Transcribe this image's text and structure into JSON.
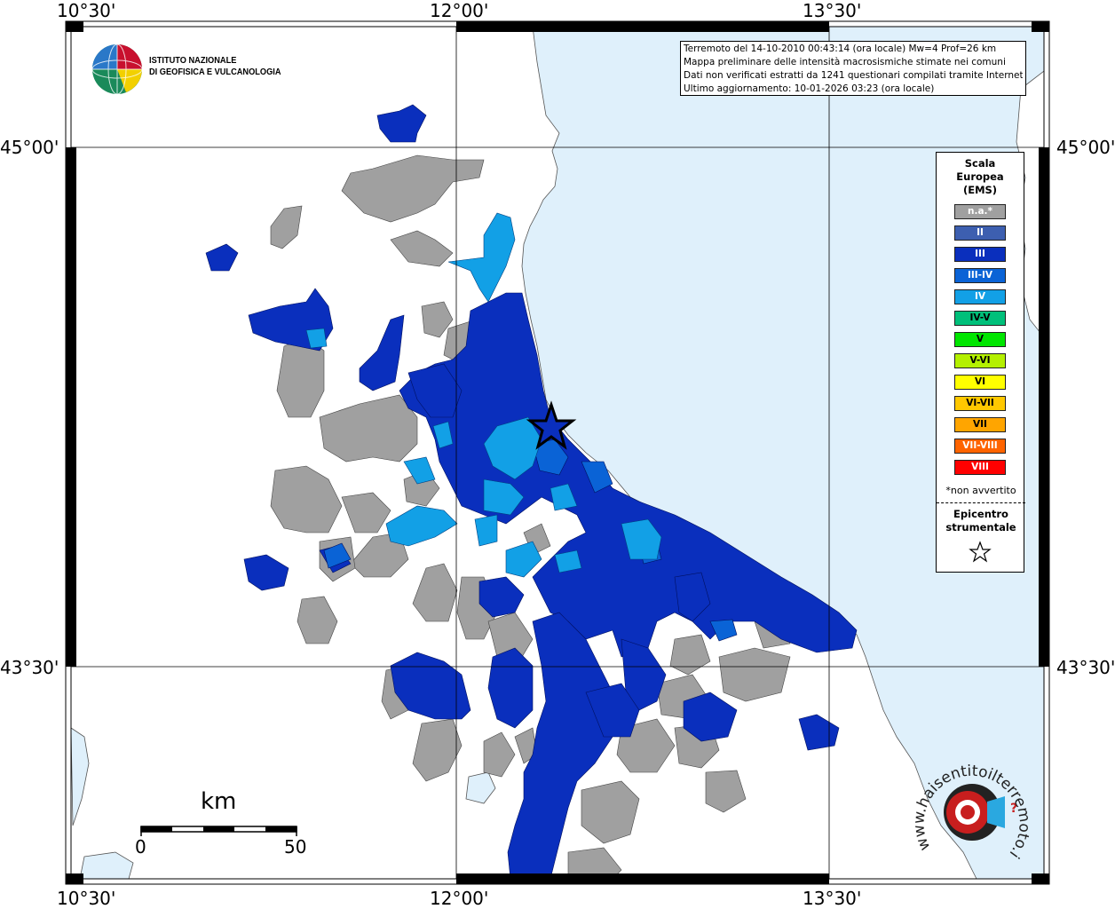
{
  "coords": {
    "top": [
      "10°30'",
      "12°00'",
      "13°30'"
    ],
    "bottom": [
      "10°30'",
      "12°00'",
      "13°30'"
    ],
    "left": [
      "45°00'",
      "43°30'"
    ],
    "right": [
      "45°00'",
      "43°30'"
    ]
  },
  "logo": {
    "line1": "ISTITUTO NAZIONALE",
    "line2": "DI GEOFISICA E VULCANOLOGIA"
  },
  "info": {
    "line1": "Terremoto del 14-10-2010 00:43:14 (ora locale) Mw=4 Prof=26 km",
    "line2": "Mappa preliminare delle intensità macrosismiche stimate nei comuni",
    "line3": "Dati non verificati estratti da 1241 questionari compilati tramite Internet.",
    "line4": "Ultimo aggiornamento: 10-01-2026 03:23 (ora locale)"
  },
  "legend": {
    "title1": "Scala",
    "title2": "Europea",
    "title3": "(EMS)",
    "items": [
      {
        "label": "n.a.*",
        "color": "#a0a0a0",
        "text": "#ffffff"
      },
      {
        "label": "II",
        "color": "#3d5fb0",
        "text": "#ffffff"
      },
      {
        "label": "III",
        "color": "#0a2fbd",
        "text": "#ffffff"
      },
      {
        "label": "III-IV",
        "color": "#0a63d6",
        "text": "#ffffff"
      },
      {
        "label": "IV",
        "color": "#12a0e6",
        "text": "#ffffff"
      },
      {
        "label": "IV-V",
        "color": "#00c07a",
        "text": "#000000"
      },
      {
        "label": "V",
        "color": "#00e600",
        "text": "#000000"
      },
      {
        "label": "V-VI",
        "color": "#b4f000",
        "text": "#000000"
      },
      {
        "label": "VI",
        "color": "#ffff00",
        "text": "#000000"
      },
      {
        "label": "VI-VII",
        "color": "#ffc800",
        "text": "#000000"
      },
      {
        "label": "VII",
        "color": "#ffa500",
        "text": "#000000"
      },
      {
        "label": "VII-VIII",
        "color": "#ff6400",
        "text": "#ffffff"
      },
      {
        "label": "VIII",
        "color": "#ff0000",
        "text": "#ffffff"
      }
    ],
    "na_note": "*non avvertito",
    "epicentre1": "Epicentro",
    "epicentre2": "strumentale"
  },
  "scale": {
    "unit": "km",
    "min": "0",
    "max": "50"
  },
  "site_logo": {
    "text": "www.haisentitoilterremoto.it"
  },
  "colors": {
    "sea": "#dff0fb",
    "land": "#ffffff",
    "na": "#a0a0a0",
    "ems3": "#0a2fbd",
    "ems34": "#0a63d6",
    "ems4": "#12a0e6"
  }
}
